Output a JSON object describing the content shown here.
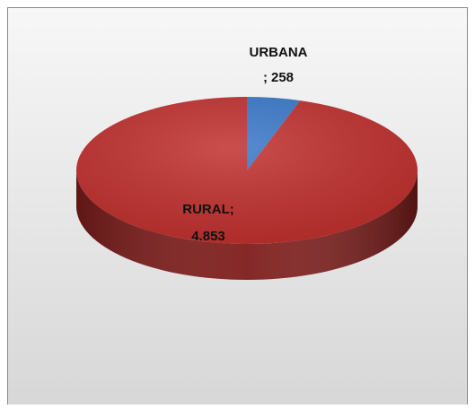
{
  "chart_data": {
    "type": "pie",
    "categories": [
      "URBANA",
      "RURAL"
    ],
    "values": [
      258,
      4853
    ],
    "value_labels": [
      "258",
      "4.853"
    ],
    "label_separator": ";",
    "colors": [
      "#3a78c9",
      "#c0302e"
    ],
    "side_color": "#7e1d1b"
  }
}
